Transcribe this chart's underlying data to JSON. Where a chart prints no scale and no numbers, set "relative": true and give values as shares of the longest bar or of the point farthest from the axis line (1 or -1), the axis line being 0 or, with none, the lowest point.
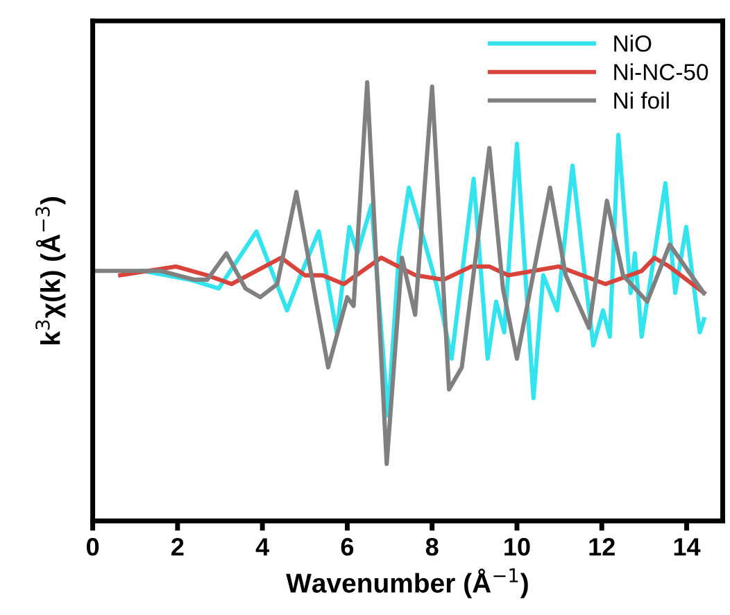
{
  "chart_data": {
    "type": "line",
    "xlabel": "Wavenumber (Å$^{−1}$)",
    "ylabel": "k$^{3}$χ(k) (Å$^{−3}$)",
    "relative": true,
    "xlim": [
      0,
      14.85
    ],
    "xticks": [
      0,
      2,
      4,
      6,
      8,
      10,
      12,
      14
    ],
    "tick_labels": "x",
    "legend": "top right",
    "grid": false,
    "marker": "none",
    "line_style": "solid",
    "series": [
      {
        "name": "NiO",
        "color": "#33e3ee",
        "x": [
          1.18,
          2.29,
          2.97,
          3.86,
          4.58,
          4.9,
          5.33,
          5.75,
          6.05,
          6.24,
          6.57,
          6.96,
          7.22,
          7.45,
          7.84,
          8.1,
          8.46,
          8.98,
          9.31,
          9.51,
          9.7,
          10.0,
          10.2,
          10.39,
          10.62,
          10.95,
          11.31,
          11.6,
          11.8,
          12.03,
          12.19,
          12.39,
          12.68,
          12.78,
          12.94,
          13.5,
          13.73,
          13.99,
          14.31,
          14.41
        ],
        "values": [
          0.57,
          0.55,
          0.53,
          0.66,
          0.48,
          0.56,
          0.66,
          0.43,
          0.67,
          0.61,
          0.72,
          0.24,
          0.61,
          0.76,
          0.63,
          0.54,
          0.37,
          0.78,
          0.37,
          0.5,
          0.43,
          0.86,
          0.56,
          0.28,
          0.56,
          0.48,
          0.81,
          0.56,
          0.4,
          0.48,
          0.42,
          0.88,
          0.52,
          0.61,
          0.42,
          0.77,
          0.52,
          0.67,
          0.43,
          0.46
        ]
      },
      {
        "name": "Ni-NC-50",
        "color": "#d8433b",
        "x": [
          0.65,
          1.96,
          2.7,
          3.27,
          4.44,
          5.0,
          5.42,
          5.92,
          6.8,
          7.61,
          8.27,
          8.92,
          9.35,
          9.8,
          10.98,
          12.09,
          12.94,
          13.24,
          13.59,
          14.41
        ],
        "values": [
          0.56,
          0.58,
          0.56,
          0.54,
          0.6,
          0.56,
          0.56,
          0.54,
          0.6,
          0.56,
          0.55,
          0.58,
          0.58,
          0.56,
          0.58,
          0.54,
          0.57,
          0.6,
          0.58,
          0.52
        ]
      },
      {
        "name": "Ni foil",
        "color": "#808080",
        "x": [
          0.0,
          1.6,
          2.4,
          2.7,
          3.15,
          3.6,
          3.95,
          4.35,
          4.8,
          5.55,
          6.0,
          6.15,
          6.47,
          6.93,
          7.29,
          7.6,
          8.0,
          8.4,
          8.7,
          9.35,
          9.67,
          10.0,
          10.78,
          11.15,
          11.7,
          12.12,
          12.5,
          13.07,
          13.6,
          14.4
        ],
        "values": [
          0.57,
          0.57,
          0.55,
          0.55,
          0.61,
          0.53,
          0.51,
          0.54,
          0.75,
          0.35,
          0.51,
          0.49,
          1.0,
          0.13,
          0.6,
          0.47,
          0.99,
          0.3,
          0.35,
          0.85,
          0.53,
          0.37,
          0.76,
          0.56,
          0.44,
          0.73,
          0.56,
          0.5,
          0.63,
          0.52
        ]
      }
    ]
  }
}
